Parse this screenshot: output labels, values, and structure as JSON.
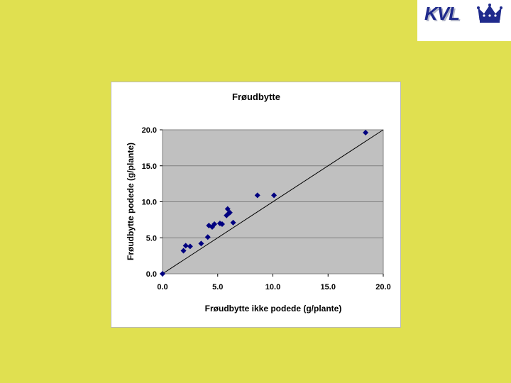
{
  "logo": {
    "text": "KVL",
    "icon": "crown-icon"
  },
  "chart_data": {
    "type": "scatter",
    "title": "Frøudbytte",
    "xlabel": "Frøudbytte ikke podede (g/plante)",
    "ylabel": "Frøudbytte podede (g/plante)",
    "xlim": [
      0,
      20
    ],
    "ylim": [
      0,
      20
    ],
    "x_ticks": [
      "0.0",
      "5.0",
      "10.0",
      "15.0",
      "20.0"
    ],
    "y_ticks": [
      "0.0",
      "5.0",
      "10.0",
      "15.0",
      "20.0"
    ],
    "grid": true,
    "reference_line": "y = x",
    "colors": {
      "plot_bg": "#c0c0c0",
      "marker": "#000080",
      "line": "#000000"
    },
    "series": [
      {
        "points": [
          [
            0.0,
            0.0
          ],
          [
            1.9,
            3.2
          ],
          [
            2.1,
            3.9
          ],
          [
            2.5,
            3.8
          ],
          [
            3.5,
            4.2
          ],
          [
            4.1,
            5.1
          ],
          [
            4.2,
            6.7
          ],
          [
            4.5,
            6.5
          ],
          [
            4.7,
            6.9
          ],
          [
            5.2,
            7.0
          ],
          [
            5.4,
            6.9
          ],
          [
            5.8,
            8.1
          ],
          [
            5.9,
            9.0
          ],
          [
            6.0,
            8.4
          ],
          [
            6.1,
            8.5
          ],
          [
            6.4,
            7.1
          ],
          [
            8.6,
            10.9
          ],
          [
            10.1,
            10.9
          ],
          [
            18.4,
            19.6
          ]
        ]
      }
    ]
  }
}
